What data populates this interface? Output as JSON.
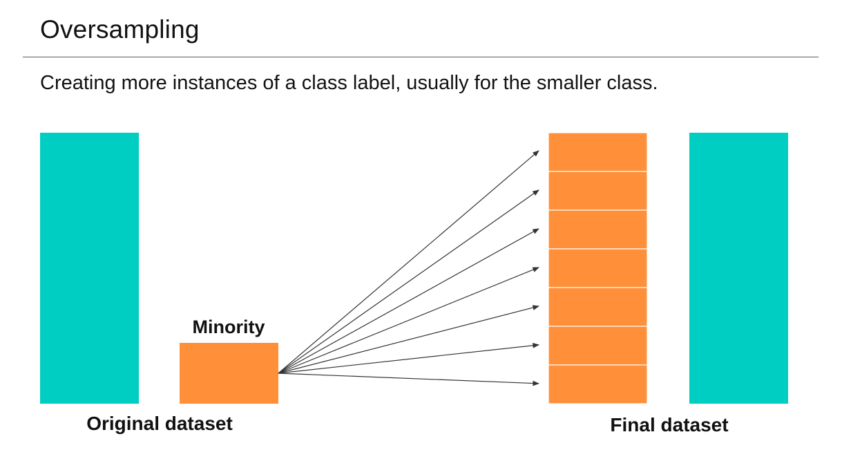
{
  "slide": {
    "title": "Oversampling",
    "subtitle": "Creating more instances of a class label, usually for the smaller class."
  },
  "diagram": {
    "minority_label": "Minority",
    "original_label": "Original dataset",
    "final_label": "Final dataset",
    "final_minority_copies": 7,
    "colors": {
      "majority": "#00CEC3",
      "minority": "#FF8F38",
      "arrow": "#333333",
      "divider": "#FFFFFF"
    }
  }
}
